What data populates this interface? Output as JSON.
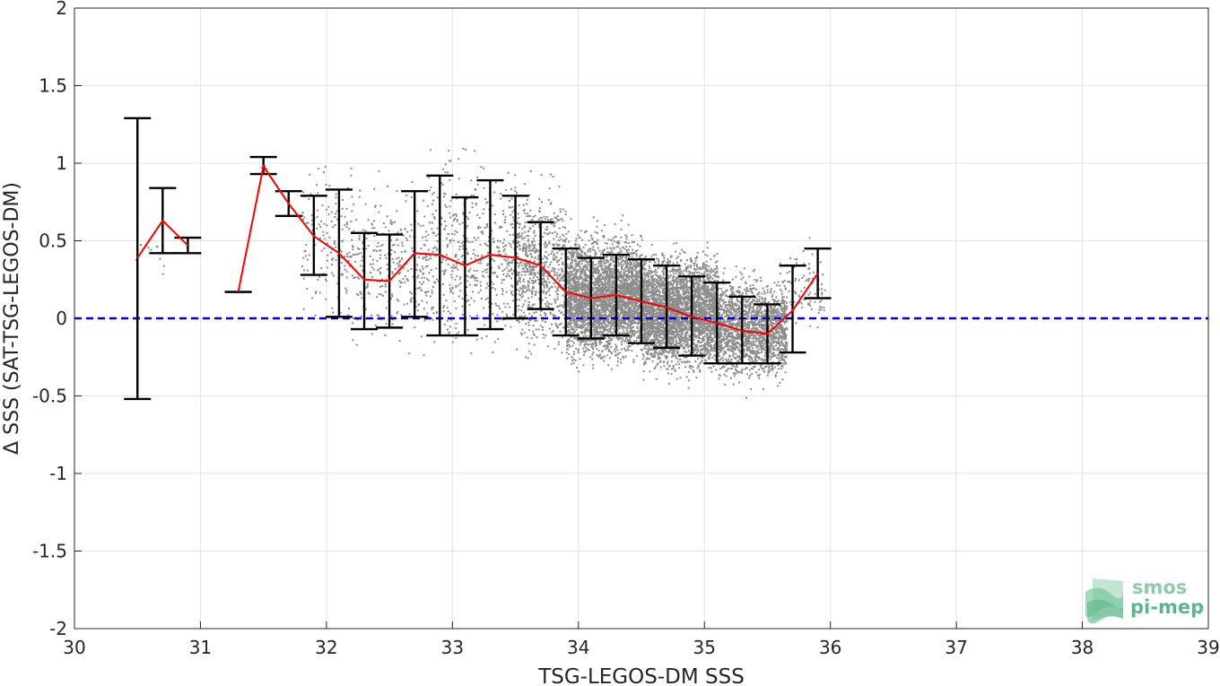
{
  "chart_data": {
    "type": "scatter",
    "xlabel": "TSG-LEGOS-DM SSS",
    "ylabel": "Δ SSS (SAT-TSG-LEGOS-DM)",
    "xlim": [
      30,
      39
    ],
    "ylim": [
      -2,
      2
    ],
    "xticks": [
      30,
      31,
      32,
      33,
      34,
      35,
      36,
      37,
      38,
      39
    ],
    "yticks": [
      -2,
      -1.5,
      -1,
      -0.5,
      0,
      0.5,
      1,
      1.5,
      2
    ],
    "xtick_labels": [
      "30",
      "31",
      "32",
      "33",
      "34",
      "35",
      "36",
      "37",
      "38",
      "39"
    ],
    "ytick_labels": [
      "-2",
      "-1.5",
      "-1",
      "-0.5",
      "0",
      "0.5",
      "1",
      "1.5",
      "2"
    ],
    "grid": true,
    "reference_line": {
      "y": 0,
      "color": "#0000cc",
      "style": "dashed"
    },
    "scatter_color": "#8c8c8c",
    "mean_line_color": "#ff0000",
    "errorbar_color": "#000000",
    "binned_stats": [
      {
        "x": 30.5,
        "mean": 0.39,
        "low": -0.52,
        "high": 1.29
      },
      {
        "x": 30.7,
        "mean": 0.63,
        "low": 0.42,
        "high": 0.84
      },
      {
        "x": 30.9,
        "mean": 0.47,
        "low": 0.42,
        "high": 0.52
      },
      {
        "x": 31.3,
        "mean": 0.17,
        "low": 0.17,
        "high": 0.17
      },
      {
        "x": 31.5,
        "mean": 0.98,
        "low": 0.93,
        "high": 1.04
      },
      {
        "x": 31.7,
        "mean": 0.74,
        "low": 0.66,
        "high": 0.82
      },
      {
        "x": 31.9,
        "mean": 0.53,
        "low": 0.28,
        "high": 0.79
      },
      {
        "x": 32.1,
        "mean": 0.42,
        "low": 0.01,
        "high": 0.83
      },
      {
        "x": 32.3,
        "mean": 0.25,
        "low": -0.07,
        "high": 0.55
      },
      {
        "x": 32.5,
        "mean": 0.24,
        "low": -0.06,
        "high": 0.54
      },
      {
        "x": 32.7,
        "mean": 0.42,
        "low": 0.01,
        "high": 0.82
      },
      {
        "x": 32.9,
        "mean": 0.41,
        "low": -0.11,
        "high": 0.92
      },
      {
        "x": 33.1,
        "mean": 0.34,
        "low": -0.11,
        "high": 0.78
      },
      {
        "x": 33.3,
        "mean": 0.41,
        "low": -0.07,
        "high": 0.89
      },
      {
        "x": 33.5,
        "mean": 0.39,
        "low": 0.0,
        "high": 0.79
      },
      {
        "x": 33.7,
        "mean": 0.34,
        "low": 0.06,
        "high": 0.62
      },
      {
        "x": 33.9,
        "mean": 0.17,
        "low": -0.11,
        "high": 0.45
      },
      {
        "x": 34.1,
        "mean": 0.13,
        "low": -0.13,
        "high": 0.39
      },
      {
        "x": 34.3,
        "mean": 0.15,
        "low": -0.11,
        "high": 0.41
      },
      {
        "x": 34.5,
        "mean": 0.11,
        "low": -0.16,
        "high": 0.38
      },
      {
        "x": 34.7,
        "mean": 0.07,
        "low": -0.19,
        "high": 0.34
      },
      {
        "x": 34.9,
        "mean": 0.01,
        "low": -0.24,
        "high": 0.27
      },
      {
        "x": 35.1,
        "mean": -0.03,
        "low": -0.29,
        "high": 0.23
      },
      {
        "x": 35.3,
        "mean": -0.08,
        "low": -0.29,
        "high": 0.14
      },
      {
        "x": 35.5,
        "mean": -0.1,
        "low": -0.29,
        "high": 0.09
      },
      {
        "x": 35.7,
        "mean": 0.05,
        "low": -0.22,
        "high": 0.34
      },
      {
        "x": 35.9,
        "mean": 0.29,
        "low": 0.13,
        "high": 0.45
      }
    ],
    "scatter_density": [
      {
        "x0": 30.45,
        "x1": 30.75,
        "center": 0.4,
        "spread": 0.12,
        "n": 10
      },
      {
        "x0": 31.45,
        "x1": 31.55,
        "center": 0.98,
        "spread": 0.05,
        "n": 6
      },
      {
        "x0": 31.8,
        "x1": 32.2,
        "center": 0.5,
        "spread": 0.38,
        "n": 170
      },
      {
        "x0": 32.2,
        "x1": 32.8,
        "center": 0.35,
        "spread": 0.42,
        "n": 320
      },
      {
        "x0": 32.8,
        "x1": 33.5,
        "center": 0.42,
        "spread": 0.5,
        "n": 520
      },
      {
        "x0": 33.5,
        "x1": 33.9,
        "center": 0.32,
        "spread": 0.4,
        "n": 700
      },
      {
        "x0": 33.9,
        "x1": 34.5,
        "center": 0.14,
        "spread": 0.32,
        "n": 3300
      },
      {
        "x0": 34.5,
        "x1": 35.1,
        "center": 0.05,
        "spread": 0.3,
        "n": 3400
      },
      {
        "x0": 35.1,
        "x1": 35.65,
        "center": -0.06,
        "spread": 0.26,
        "n": 1800
      },
      {
        "x0": 35.65,
        "x1": 35.95,
        "center": 0.2,
        "spread": 0.22,
        "n": 90
      }
    ],
    "logo": {
      "line1": "smos",
      "line2": "pi-mep",
      "color": "#5fb58a"
    }
  }
}
